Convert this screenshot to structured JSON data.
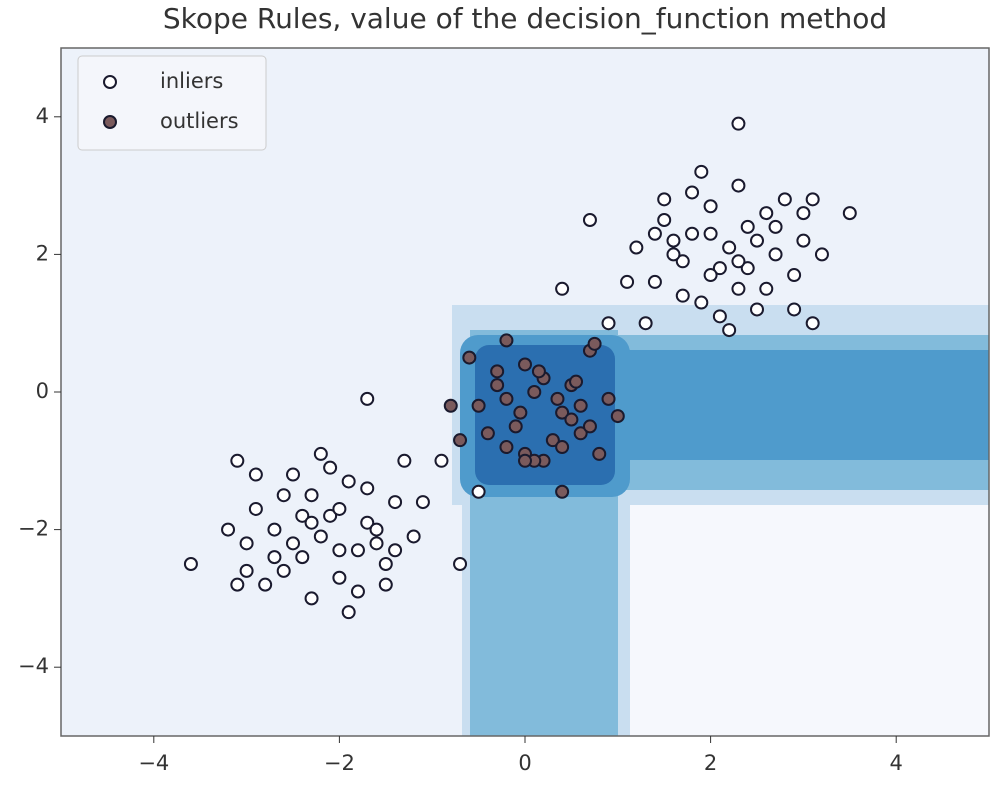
{
  "chart_data": {
    "type": "scatter",
    "title": "Skope Rules, value of the decision_function method",
    "xlim": [
      -5,
      5
    ],
    "ylim": [
      -5,
      5
    ],
    "xticks": [
      {
        "value": -4,
        "label": "−4"
      },
      {
        "value": -2,
        "label": "−2"
      },
      0,
      2,
      4
    ],
    "yticks": [
      {
        "value": -4,
        "label": "−4"
      },
      {
        "value": -2,
        "label": "−2"
      },
      0,
      2,
      4
    ],
    "legend": "upper left",
    "series": [
      {
        "name": "inliers",
        "color": "#ffffff",
        "edgecolor": "#1a1a2e",
        "x": [
          1.2,
          1.5,
          1.8,
          2.1,
          2.4,
          2.7,
          3.0,
          1.4,
          1.7,
          2.0,
          2.3,
          2.6,
          2.9,
          1.6,
          1.9,
          2.2,
          2.5,
          2.8,
          1.3,
          1.8,
          2.1,
          2.4,
          2.0,
          1.7,
          2.3,
          2.6,
          1.5,
          2.9,
          3.2,
          1.1,
          0.7,
          2.2,
          1.9,
          2.5,
          1.6,
          3.1,
          0.9,
          2.0,
          2.7,
          1.4,
          2.3,
          3.0,
          3.5,
          2.3,
          3.1,
          -1.2,
          -1.5,
          -1.8,
          -2.1,
          -2.4,
          -2.7,
          -3.0,
          -1.4,
          -1.7,
          -2.0,
          -2.3,
          -2.6,
          -2.9,
          -1.6,
          -1.9,
          -2.2,
          -2.5,
          -2.8,
          -1.3,
          -1.8,
          -2.1,
          -2.4,
          -2.0,
          -1.7,
          -2.3,
          -2.6,
          -1.5,
          -2.9,
          -3.2,
          -1.1,
          -0.7,
          -2.2,
          -1.9,
          -2.5,
          -1.6,
          -3.1,
          -0.9,
          -2.0,
          -2.7,
          -1.4,
          -2.3,
          -3.0,
          -3.6,
          -1.7,
          -3.1,
          0.4,
          -0.5
        ],
        "y": [
          2.1,
          2.5,
          2.3,
          1.8,
          2.4,
          2.0,
          2.2,
          1.6,
          1.9,
          2.7,
          1.5,
          2.6,
          1.7,
          2.2,
          1.3,
          2.1,
          1.2,
          2.8,
          1.0,
          2.9,
          1.1,
          1.8,
          2.3,
          1.4,
          3.0,
          1.5,
          2.8,
          1.2,
          2.0,
          1.6,
          2.5,
          0.9,
          3.2,
          2.2,
          2.0,
          2.8,
          1.0,
          1.7,
          2.4,
          2.3,
          1.9,
          2.6,
          2.6,
          3.9,
          1.0,
          -2.1,
          -2.5,
          -2.3,
          -1.8,
          -2.4,
          -2.0,
          -2.2,
          -1.6,
          -1.9,
          -2.7,
          -1.5,
          -2.6,
          -1.7,
          -2.2,
          -1.3,
          -2.1,
          -1.2,
          -2.8,
          -1.0,
          -2.9,
          -1.1,
          -1.8,
          -2.3,
          -1.4,
          -3.0,
          -1.5,
          -2.8,
          -1.2,
          -2.0,
          -1.6,
          -2.5,
          -0.9,
          -3.2,
          -2.2,
          -2.0,
          -2.8,
          -1.0,
          -1.7,
          -2.4,
          -2.3,
          -1.9,
          -2.6,
          -2.5,
          -0.1,
          -1.0,
          1.5,
          -1.45
        ]
      },
      {
        "name": "outliers",
        "color": "#7a5a5c",
        "edgecolor": "#1a1a2e",
        "x": [
          -0.6,
          -0.3,
          0.0,
          0.2,
          0.5,
          0.7,
          -0.5,
          -0.2,
          0.1,
          0.4,
          0.6,
          0.9,
          -0.4,
          -0.1,
          0.3,
          0.5,
          0.8,
          -0.3,
          0.0,
          0.2,
          0.6,
          -0.2,
          0.1,
          0.4,
          0.7,
          -0.8,
          -0.7,
          0.0,
          0.75,
          0.4,
          -0.2,
          1.0,
          0.15,
          0.55,
          0.35,
          -0.05
        ],
        "y": [
          0.5,
          0.3,
          0.4,
          0.2,
          0.1,
          0.6,
          -0.2,
          -0.1,
          0.0,
          -0.3,
          -0.2,
          -0.1,
          -0.6,
          -0.5,
          -0.7,
          -0.4,
          -0.9,
          0.1,
          -0.9,
          -1.0,
          -0.6,
          -0.8,
          -1.0,
          -0.8,
          -0.5,
          -0.2,
          -0.7,
          -1.0,
          0.7,
          -1.45,
          0.75,
          -0.35,
          0.3,
          0.15,
          -0.1,
          -0.3
        ]
      }
    ]
  }
}
